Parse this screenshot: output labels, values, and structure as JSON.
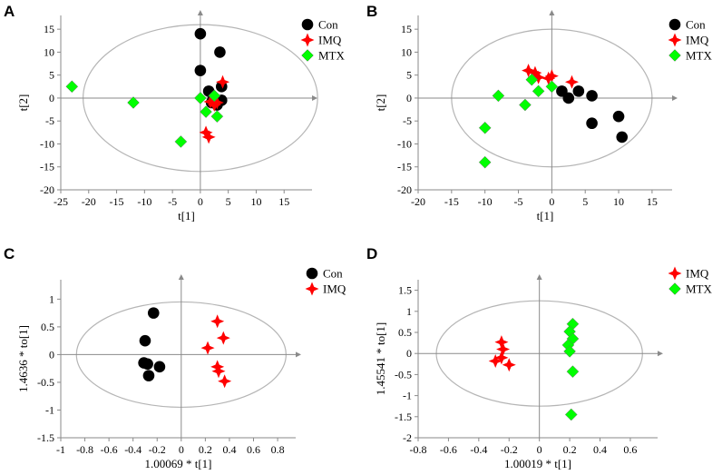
{
  "figure": {
    "panels": [
      {
        "label": "A",
        "chart_data": {
          "type": "scatter",
          "xlabel": "t[1]",
          "ylabel": "t[2]",
          "xlim": [
            -25,
            20
          ],
          "ylim": [
            -20,
            18
          ],
          "xticks": [
            -25,
            -20,
            -15,
            -10,
            -5,
            0,
            5,
            10,
            15
          ],
          "xtick_labels": [
            "-25",
            "-20",
            "-15",
            "-10",
            "-5",
            "0",
            "5",
            "10",
            "15"
          ],
          "yticks": [
            -20,
            -15,
            -10,
            -5,
            0,
            5,
            10,
            15
          ],
          "ytick_labels": [
            "-20",
            "-15",
            "-10",
            "-5",
            "0",
            "5",
            "10",
            "15"
          ],
          "ellipse": {
            "rx": 21,
            "ry": 16
          },
          "legend": [
            "Con",
            "IMQ",
            "MTX"
          ],
          "series": [
            {
              "name": "Con",
              "marker": "circle",
              "color": "#000000",
              "points": [
                [
                  0,
                  14
                ],
                [
                  3.5,
                  10
                ],
                [
                  0,
                  6
                ],
                [
                  1.5,
                  1.5
                ],
                [
                  3.8,
                  2.5
                ],
                [
                  3.8,
                  -0.5
                ],
                [
                  2.5,
                  0
                ],
                [
                  2,
                  -1
                ],
                [
                  3,
                  -1.5
                ],
                [
                  2.2,
                  -0.5
                ]
              ]
            },
            {
              "name": "IMQ",
              "marker": "star",
              "color": "#ff0000",
              "points": [
                [
                  4,
                  3.5
                ],
                [
                  2.5,
                  -1.5
                ],
                [
                  1,
                  -7.5
                ],
                [
                  1.5,
                  -8.5
                ],
                [
                  3,
                  -1
                ],
                [
                  1.8,
                  -0.8
                ]
              ]
            },
            {
              "name": "MTX",
              "marker": "diamond",
              "color": "#00ff00",
              "points": [
                [
                  -23,
                  2.5
                ],
                [
                  -12,
                  -1
                ],
                [
                  -3.5,
                  -9.5
                ],
                [
                  0,
                  0
                ],
                [
                  1,
                  -3
                ],
                [
                  3,
                  -4
                ],
                [
                  2.5,
                  0.5
                ]
              ]
            }
          ]
        }
      },
      {
        "label": "B",
        "chart_data": {
          "type": "scatter",
          "xlabel": "t[1]",
          "ylabel": "t[2]",
          "xlim": [
            -20,
            18
          ],
          "ylim": [
            -20,
            18
          ],
          "xticks": [
            -20,
            -15,
            -10,
            -5,
            0,
            5,
            10,
            15
          ],
          "xtick_labels": [
            "-20",
            "-15",
            "-10",
            "-5",
            "0",
            "5",
            "10",
            "15"
          ],
          "yticks": [
            -20,
            -15,
            -10,
            -5,
            0,
            5,
            10,
            15
          ],
          "ytick_labels": [
            "-20",
            "-15",
            "-10",
            "-5",
            "0",
            "5",
            "10",
            "15"
          ],
          "ellipse": {
            "rx": 15,
            "ry": 15
          },
          "legend": [
            "Con",
            "IMQ",
            "MTX"
          ],
          "series": [
            {
              "name": "Con",
              "marker": "circle",
              "color": "#000000",
              "points": [
                [
                  1.5,
                  1.5
                ],
                [
                  2.5,
                  0
                ],
                [
                  4,
                  1.5
                ],
                [
                  6,
                  0.5
                ],
                [
                  6,
                  -5.5
                ],
                [
                  10,
                  -4
                ],
                [
                  10.5,
                  -8.5
                ]
              ]
            },
            {
              "name": "IMQ",
              "marker": "star",
              "color": "#ff0000",
              "points": [
                [
                  -3.5,
                  6
                ],
                [
                  -2.5,
                  5.5
                ],
                [
                  0,
                  4.8
                ],
                [
                  -0.5,
                  4.3
                ],
                [
                  3,
                  3.5
                ],
                [
                  -2,
                  4.5
                ]
              ]
            },
            {
              "name": "MTX",
              "marker": "diamond",
              "color": "#00ff00",
              "points": [
                [
                  -10,
                  -6.5
                ],
                [
                  -8,
                  0.5
                ],
                [
                  -3,
                  4
                ],
                [
                  -2,
                  1.5
                ],
                [
                  0,
                  2.5
                ],
                [
                  -4,
                  -1.5
                ],
                [
                  -10,
                  -14
                ]
              ]
            }
          ]
        }
      },
      {
        "label": "C",
        "chart_data": {
          "type": "scatter",
          "xlabel": "1.00069 * t[1]",
          "ylabel": "1.4636 * to[1]",
          "xlim": [
            -1,
            0.95
          ],
          "ylim": [
            -1.5,
            1.35
          ],
          "xticks": [
            -1,
            -0.8,
            -0.6,
            -0.4,
            -0.2,
            0,
            0.2,
            0.4,
            0.6,
            0.8
          ],
          "xtick_labels": [
            "-1",
            "-0.8",
            "-0.6",
            "-0.4",
            "-0.2",
            "0",
            "0.2",
            "0.4",
            "0.6",
            "0.8"
          ],
          "yticks": [
            -1.5,
            -1,
            -0.5,
            0,
            0.5,
            1
          ],
          "ytick_labels": [
            "-1.5",
            "-1",
            "-0.5",
            "0",
            "0.5",
            "1"
          ],
          "ellipse": {
            "rx": 0.87,
            "ry": 0.95
          },
          "legend": [
            "Con",
            "IMQ"
          ],
          "series": [
            {
              "name": "Con",
              "marker": "circle",
              "color": "#000000",
              "points": [
                [
                  -0.23,
                  0.75
                ],
                [
                  -0.3,
                  0.25
                ],
                [
                  -0.31,
                  -0.15
                ],
                [
                  -0.28,
                  -0.17
                ],
                [
                  -0.18,
                  -0.22
                ],
                [
                  -0.27,
                  -0.38
                ]
              ]
            },
            {
              "name": "IMQ",
              "marker": "star",
              "color": "#ff0000",
              "points": [
                [
                  0.3,
                  0.6
                ],
                [
                  0.35,
                  0.3
                ],
                [
                  0.22,
                  0.12
                ],
                [
                  0.3,
                  -0.22
                ],
                [
                  0.31,
                  -0.3
                ],
                [
                  0.36,
                  -0.48
                ]
              ]
            }
          ]
        }
      },
      {
        "label": "D",
        "chart_data": {
          "type": "scatter",
          "xlabel": "1.00019 * t[1]",
          "ylabel": "1.45541 * to[1]",
          "xlim": [
            -0.8,
            0.78
          ],
          "ylim": [
            -2,
            1.75
          ],
          "xticks": [
            -0.8,
            -0.6,
            -0.4,
            -0.2,
            0,
            0.2,
            0.4,
            0.6
          ],
          "xtick_labels": [
            "-0.8",
            "-0.6",
            "-0.4",
            "-0.2",
            "0",
            "0.2",
            "0.4",
            "0.6"
          ],
          "yticks": [
            -2,
            -1.5,
            -1,
            -0.5,
            0,
            0.5,
            1,
            1.5
          ],
          "ytick_labels": [
            "-2",
            "-1.5",
            "-1",
            "-0.5",
            "0",
            "0.5",
            "1",
            "1.5"
          ],
          "ellipse": {
            "rx": 0.68,
            "ry": 1.25
          },
          "legend": [
            "IMQ",
            "MTX"
          ],
          "series": [
            {
              "name": "IMQ",
              "marker": "star",
              "color": "#ff0000",
              "points": [
                [
                  -0.25,
                  0.27
                ],
                [
                  -0.24,
                  0.1
                ],
                [
                  -0.29,
                  -0.18
                ],
                [
                  -0.25,
                  -0.1
                ],
                [
                  -0.2,
                  -0.27
                ]
              ]
            },
            {
              "name": "MTX",
              "marker": "diamond",
              "color": "#00ff00",
              "points": [
                [
                  0.22,
                  0.7
                ],
                [
                  0.2,
                  0.52
                ],
                [
                  0.22,
                  0.35
                ],
                [
                  0.19,
                  0.2
                ],
                [
                  0.2,
                  0.05
                ],
                [
                  0.22,
                  -0.43
                ],
                [
                  0.21,
                  -1.45
                ]
              ]
            }
          ]
        }
      }
    ]
  }
}
